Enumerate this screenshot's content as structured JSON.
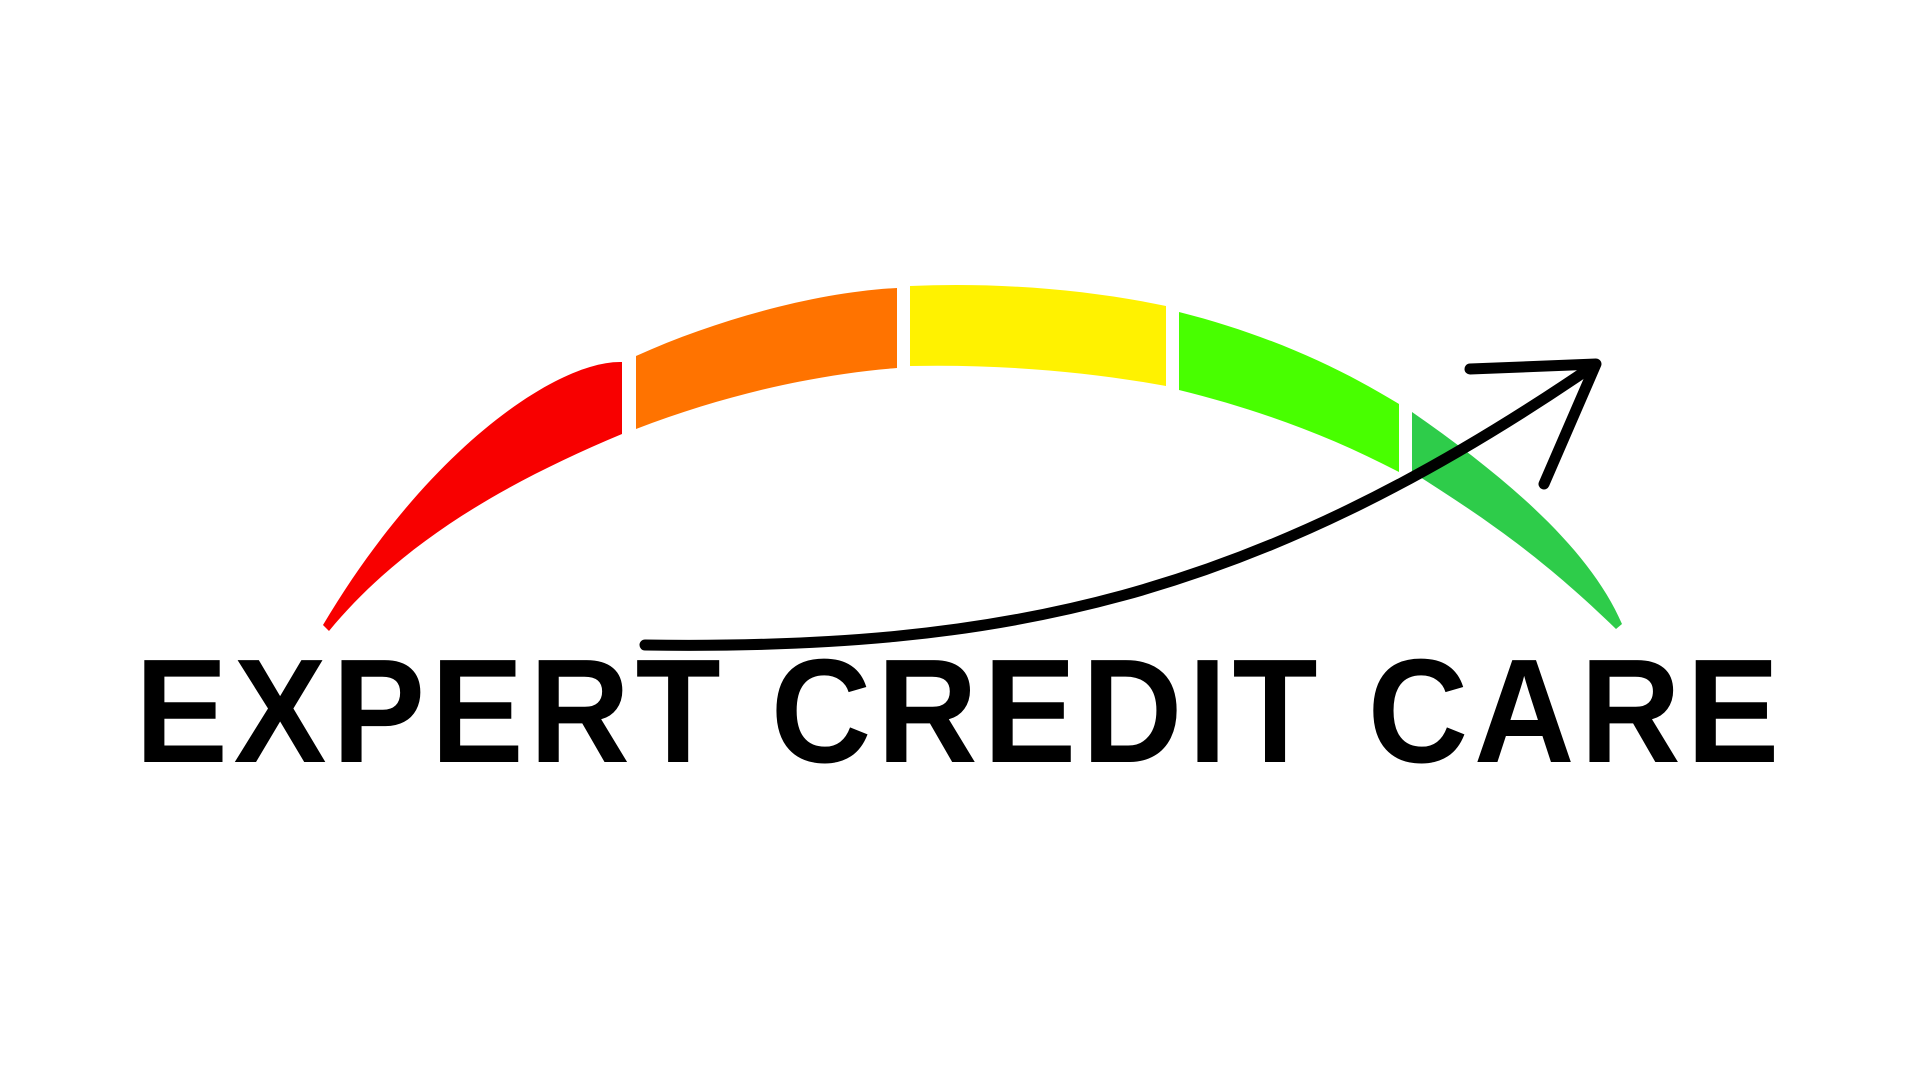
{
  "logo": {
    "wordmark": "EXPERT CREDIT CARE",
    "gauge_segments": [
      {
        "name": "red",
        "color": "#f80000"
      },
      {
        "name": "orange",
        "color": "#ff7300"
      },
      {
        "name": "yellow",
        "color": "#fff200"
      },
      {
        "name": "lime",
        "color": "#48ff00"
      },
      {
        "name": "green",
        "color": "#2ecc4a"
      }
    ],
    "arrow_color": "#000000",
    "background_color": "#ffffff"
  }
}
